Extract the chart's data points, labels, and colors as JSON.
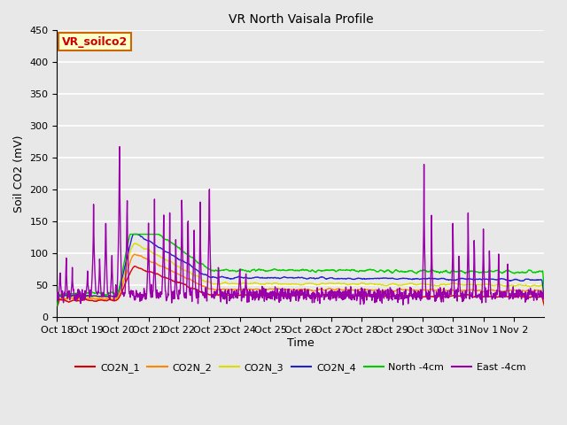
{
  "title": "VR North Vaisala Profile",
  "ylabel": "Soil CO2 (mV)",
  "xlabel": "Time",
  "ylim": [
    0,
    450
  ],
  "annotation_text": "VR_soilco2",
  "annotation_bg": "#ffffcc",
  "annotation_border": "#cc6600",
  "annotation_text_color": "#cc0000",
  "xtick_labels": [
    "Oct 18",
    "Oct 19",
    "Oct 20",
    "Oct 21",
    "Oct 22",
    "Oct 23",
    "Oct 24",
    "Oct 25",
    "Oct 26",
    "Oct 27",
    "Oct 28",
    "Oct 29",
    "Oct 30",
    "Oct 31",
    "Nov 1",
    "Nov 2"
  ],
  "fig_bg": "#e8e8e8",
  "plot_bg": "#e8e8e8",
  "grid_color": "#ffffff",
  "series_colors": {
    "CO2N_1": "#dd0000",
    "CO2N_2": "#ff8800",
    "CO2N_3": "#dddd00",
    "CO2N_4": "#2222cc",
    "North_4cm": "#00cc00",
    "East_4cm": "#9900aa"
  },
  "legend_labels": [
    "CO2N_1",
    "CO2N_2",
    "CO2N_3",
    "CO2N_4",
    "North -4cm",
    "East -4cm"
  ],
  "n_days": 16,
  "figsize": [
    6.4,
    4.8
  ],
  "dpi": 100
}
